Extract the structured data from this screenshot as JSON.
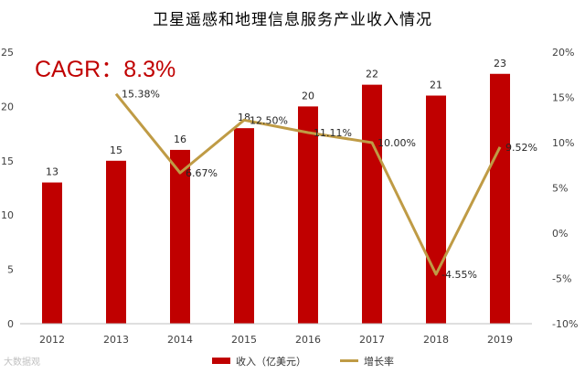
{
  "chart_data": {
    "type": "bar+line",
    "title": "卫星遥感和地理信息服务产业收入情况",
    "annotation": "CAGR：8.3%",
    "categories": [
      "2012",
      "2013",
      "2014",
      "2015",
      "2016",
      "2017",
      "2018",
      "2019"
    ],
    "series": [
      {
        "name": "收入（亿美元）",
        "type": "bar",
        "axis": "left",
        "color": "#C00000",
        "values": [
          13,
          15,
          16,
          18,
          20,
          22,
          21,
          23
        ],
        "labels": [
          "13",
          "15",
          "16",
          "18",
          "20",
          "22",
          "21",
          "23"
        ]
      },
      {
        "name": "增长率",
        "type": "line",
        "axis": "right",
        "color": "#BF9B45",
        "values": [
          null,
          15.38,
          6.67,
          12.5,
          11.11,
          10.0,
          -4.55,
          9.52
        ],
        "labels": [
          "",
          "15.38%",
          "6.67%",
          "12.50%",
          "11.11%",
          "10.00%",
          "-4.55%",
          "9.52%"
        ]
      }
    ],
    "y_left": {
      "min": 0,
      "max": 25,
      "ticks": [
        "0",
        "5",
        "10",
        "15",
        "20",
        "25"
      ]
    },
    "y_right": {
      "min": -10,
      "max": 20,
      "ticks": [
        "-10%",
        "-5%",
        "0%",
        "5%",
        "10%",
        "15%",
        "20%"
      ]
    },
    "legend_position": "bottom",
    "grid": false
  },
  "watermark": "大数据观"
}
